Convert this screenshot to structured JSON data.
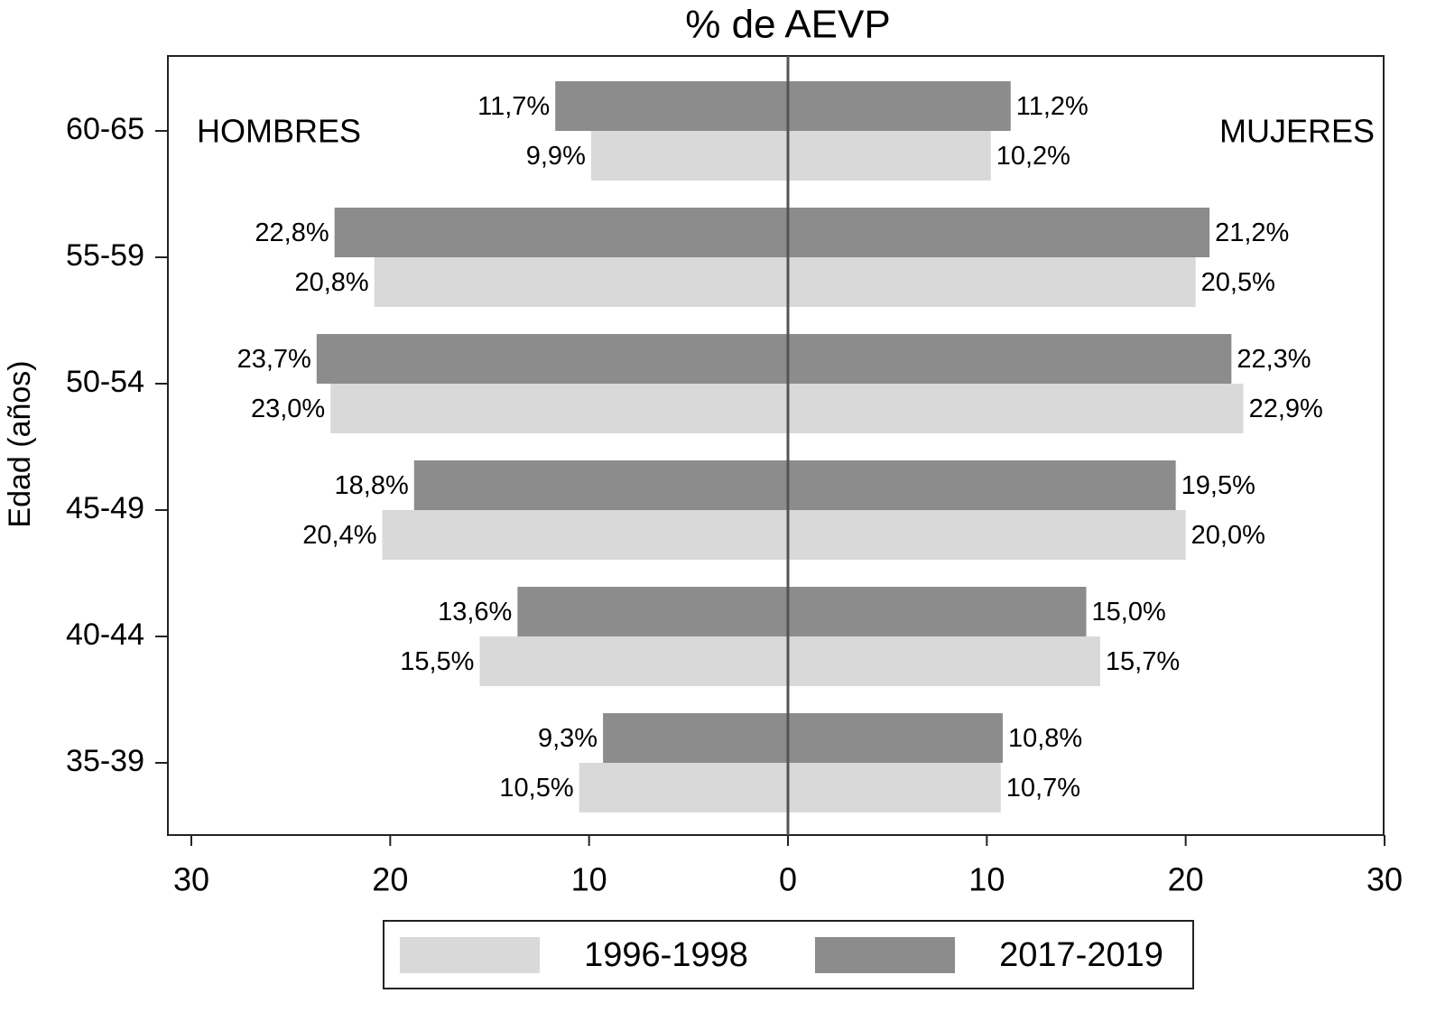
{
  "chart_data": {
    "type": "pyramid",
    "title": "% de AEVP",
    "y_label": "Edad (años)",
    "sides": [
      "HOMBRES",
      "MUJERES"
    ],
    "categories": [
      "60-65",
      "55-59",
      "50-54",
      "45-49",
      "40-44",
      "35-39"
    ],
    "series": [
      {
        "name": "1996-1998",
        "color": "#d9d9d9",
        "values": [
          [
            9.9,
            20.8,
            23.0,
            20.4,
            15.5,
            10.5
          ],
          [
            10.2,
            20.5,
            22.9,
            20.0,
            15.7,
            10.7
          ]
        ],
        "value_labels": [
          [
            "9,9%",
            "20,8%",
            "23,0%",
            "20,4%",
            "15,5%",
            "10,5%"
          ],
          [
            "10,2%",
            "20,5%",
            "22,9%",
            "20,0%",
            "15,7%",
            "10,7%"
          ]
        ]
      },
      {
        "name": "2017-2019",
        "color": "#8c8c8c",
        "values": [
          [
            11.7,
            22.8,
            23.7,
            18.8,
            13.6,
            9.3
          ],
          [
            11.2,
            21.2,
            22.3,
            19.5,
            15.0,
            10.8
          ]
        ],
        "value_labels": [
          [
            "11,7%",
            "22,8%",
            "23,7%",
            "18,8%",
            "13,6%",
            "9,3%"
          ],
          [
            "11,2%",
            "21,2%",
            "22,3%",
            "19,5%",
            "15,0%",
            "10,8%"
          ]
        ]
      }
    ],
    "xlim": [
      0,
      30
    ],
    "xticks": [
      0,
      10,
      20,
      30
    ]
  }
}
